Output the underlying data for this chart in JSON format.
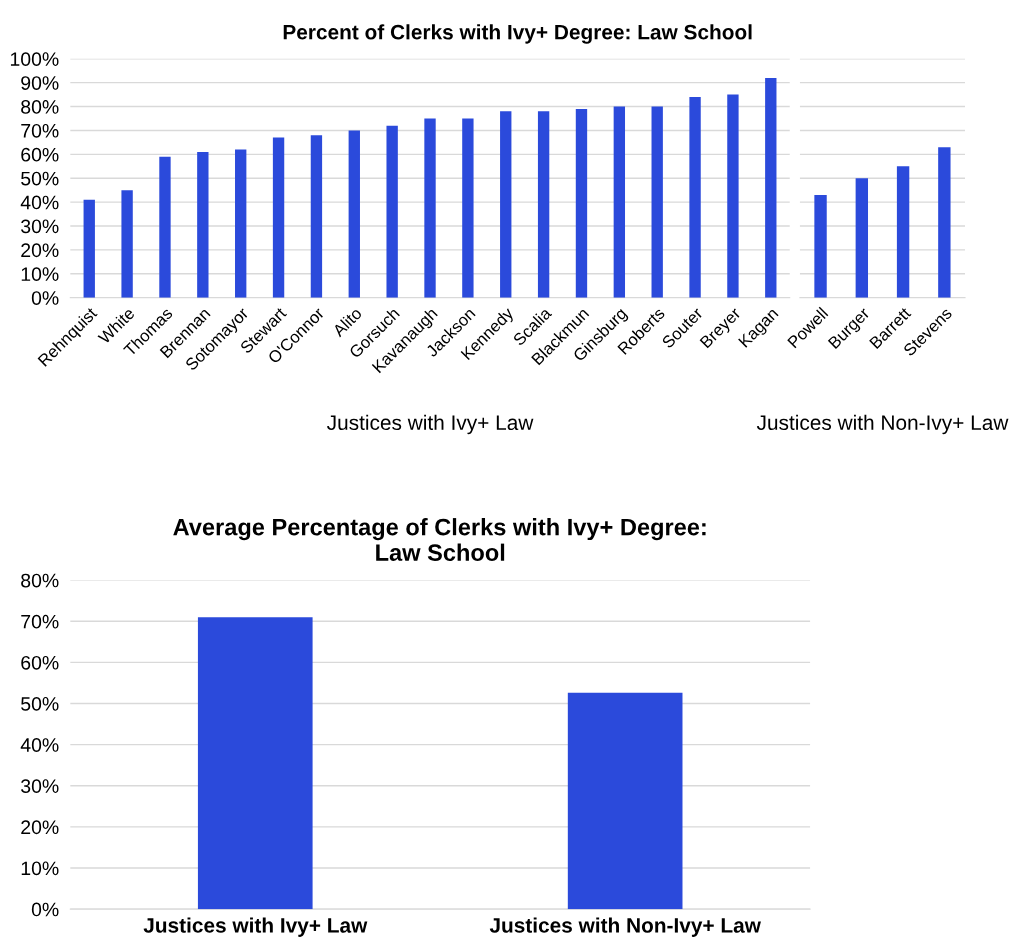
{
  "chart_data": [
    {
      "type": "bar",
      "title": "Percent of Clerks with Ivy+ Degree: Law School",
      "xlabel": "Justices with Ivy+ Law",
      "categories": [
        "Rehnquist",
        "White",
        "Thomas",
        "Brennan",
        "Sotomayor",
        "Stewart",
        "O'Connor",
        "Alito",
        "Gorsuch",
        "Kavanaugh",
        "Jackson",
        "Kennedy",
        "Scalia",
        "Blackmun",
        "Ginsburg",
        "Roberts",
        "Souter",
        "Breyer",
        "Kagan"
      ],
      "values": [
        41,
        45,
        59,
        61,
        62,
        67,
        68,
        70,
        72,
        75,
        75,
        78,
        78,
        79,
        80,
        80,
        84,
        85,
        92
      ],
      "color": "#2b4adb",
      "ylim": [
        0,
        100
      ],
      "yticks": [
        {
          "value": 0,
          "label": "0%"
        },
        {
          "value": 10,
          "label": "10%"
        },
        {
          "value": 20,
          "label": "20%"
        },
        {
          "value": 30,
          "label": "30%"
        },
        {
          "value": 40,
          "label": "40%"
        },
        {
          "value": 50,
          "label": "50%"
        },
        {
          "value": 60,
          "label": "60%"
        },
        {
          "value": 70,
          "label": "70%"
        },
        {
          "value": 80,
          "label": "80%"
        },
        {
          "value": 90,
          "label": "90%"
        },
        {
          "value": 100,
          "label": "100%"
        }
      ],
      "grid": "y"
    },
    {
      "type": "bar",
      "xlabel": "Justices with Non-Ivy+ Law",
      "categories": [
        "Powell",
        "Burger",
        "Barrett",
        "Stevens"
      ],
      "values": [
        43,
        50,
        55,
        63
      ],
      "color": "#2b4adb",
      "ylim": [
        0,
        100
      ],
      "yticks": [
        0,
        10,
        20,
        30,
        40,
        50,
        60,
        70,
        80,
        90,
        100
      ],
      "grid": "y",
      "tick_labels": "x"
    },
    {
      "type": "bar",
      "title": "Average Percentage of Clerks with Ivy+ Degree:\nLaw School",
      "categories": [
        "Justices with Ivy+ Law",
        "Justices with Non-Ivy+ Law"
      ],
      "values": [
        71,
        52.6
      ],
      "color": "#2b4adb",
      "ylim": [
        0,
        80
      ],
      "yticks": [
        {
          "value": 0,
          "label": "0%"
        },
        {
          "value": 10,
          "label": "10%"
        },
        {
          "value": 20,
          "label": "20%"
        },
        {
          "value": 30,
          "label": "30%"
        },
        {
          "value": 40,
          "label": "40%"
        },
        {
          "value": 50,
          "label": "50%"
        },
        {
          "value": 60,
          "label": "60%"
        },
        {
          "value": 70,
          "label": "70%"
        },
        {
          "value": 80,
          "label": "80%"
        }
      ],
      "grid": "y"
    }
  ]
}
